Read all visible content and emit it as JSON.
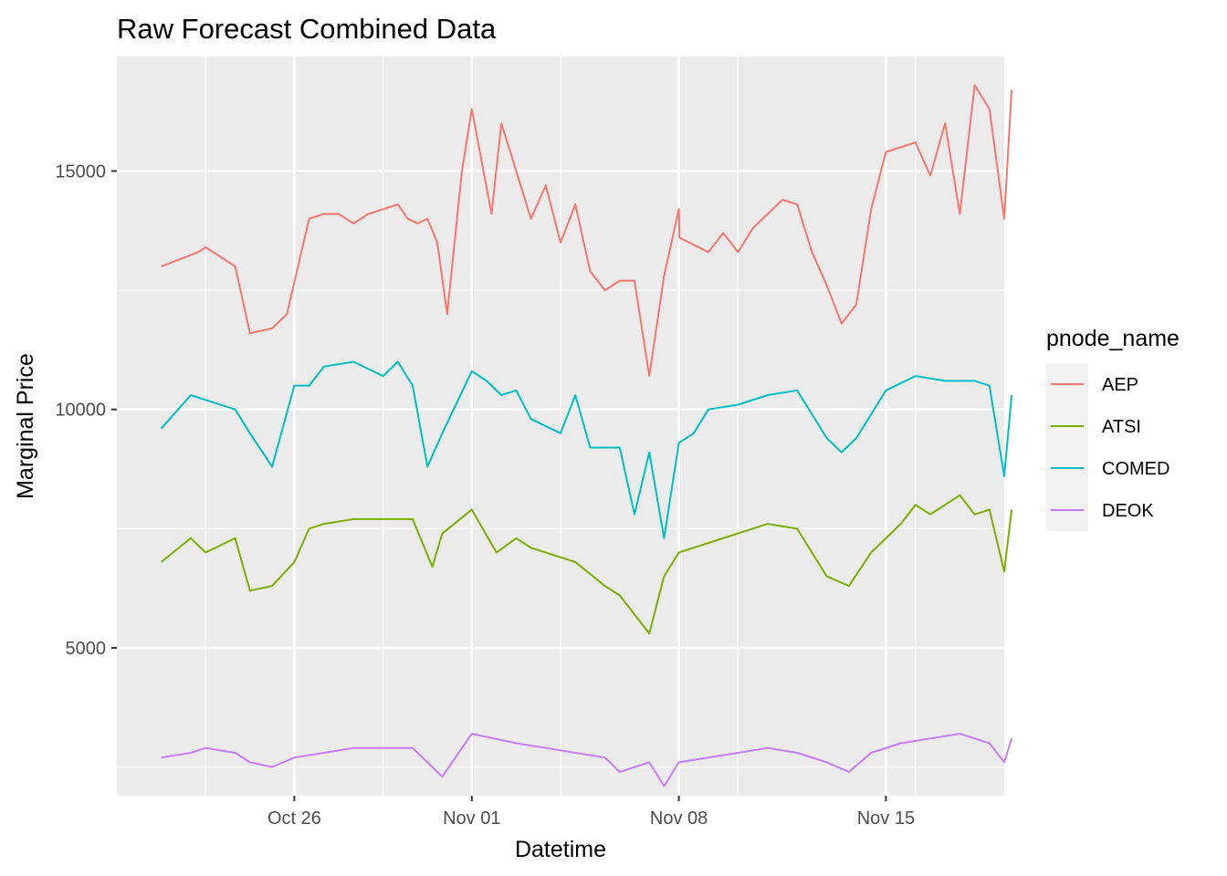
{
  "chart_data": {
    "type": "line",
    "title": "Raw Forecast Combined Data",
    "xlabel": "Datetime",
    "ylabel": "Marginal Price",
    "x_type": "date",
    "xlim": [
      "2025-10-20",
      "2025-11-19"
    ],
    "ylim": [
      1900,
      17400
    ],
    "x_ticks": [
      {
        "value": "2025-10-26",
        "label": "Oct 26"
      },
      {
        "value": "2025-11-01",
        "label": "Nov 01"
      },
      {
        "value": "2025-11-08",
        "label": "Nov 08"
      },
      {
        "value": "2025-11-15",
        "label": "Nov 15"
      }
    ],
    "y_ticks": [
      {
        "value": 5000,
        "label": "5000"
      },
      {
        "value": 10000,
        "label": "10000"
      },
      {
        "value": 15000,
        "label": "15000"
      }
    ],
    "grid": true,
    "legend": {
      "title": "pnode_name",
      "position": "right"
    },
    "series": [
      {
        "name": "AEP",
        "color": "#F8766D",
        "points": [
          [
            "2025-10-21 12:00",
            13000
          ],
          [
            "2025-10-22 18:00",
            13300
          ],
          [
            "2025-10-23 00:00",
            13400
          ],
          [
            "2025-10-24 00:00",
            13000
          ],
          [
            "2025-10-24 12:00",
            11600
          ],
          [
            "2025-10-25 06:00",
            11700
          ],
          [
            "2025-10-25 18:00",
            12000
          ],
          [
            "2025-10-26 12:00",
            14000
          ],
          [
            "2025-10-27 00:00",
            14100
          ],
          [
            "2025-10-27 12:00",
            14100
          ],
          [
            "2025-10-28 00:00",
            13900
          ],
          [
            "2025-10-28 12:00",
            14100
          ],
          [
            "2025-10-29 00:00",
            14200
          ],
          [
            "2025-10-29 12:00",
            14300
          ],
          [
            "2025-10-29 20:00",
            14000
          ],
          [
            "2025-10-30 04:00",
            13900
          ],
          [
            "2025-10-30 12:00",
            14000
          ],
          [
            "2025-10-30 20:00",
            13500
          ],
          [
            "2025-10-31 04:00",
            12000
          ],
          [
            "2025-10-31 16:00",
            15000
          ],
          [
            "2025-11-01 00:00",
            16300
          ],
          [
            "2025-11-01 16:00",
            14100
          ],
          [
            "2025-11-02 00:00",
            16000
          ],
          [
            "2025-11-02 12:00",
            15000
          ],
          [
            "2025-11-03 00:00",
            14000
          ],
          [
            "2025-11-03 12:00",
            14700
          ],
          [
            "2025-11-04 00:00",
            13500
          ],
          [
            "2025-11-04 12:00",
            14300
          ],
          [
            "2025-11-05 00:00",
            12900
          ],
          [
            "2025-11-05 12:00",
            12500
          ],
          [
            "2025-11-06 00:00",
            12700
          ],
          [
            "2025-11-06 12:00",
            12700
          ],
          [
            "2025-11-07 00:00",
            10700
          ],
          [
            "2025-11-07 12:00",
            12800
          ],
          [
            "2025-11-08 00:00",
            14200
          ],
          [
            "2025-11-08 00:30",
            13600
          ],
          [
            "2025-11-09 00:00",
            13300
          ],
          [
            "2025-11-09 12:00",
            13700
          ],
          [
            "2025-11-10 00:00",
            13300
          ],
          [
            "2025-11-10 12:00",
            13800
          ],
          [
            "2025-11-11 00:00",
            14100
          ],
          [
            "2025-11-11 12:00",
            14400
          ],
          [
            "2025-11-12 00:00",
            14300
          ],
          [
            "2025-11-12 12:00",
            13300
          ],
          [
            "2025-11-13 00:00",
            12600
          ],
          [
            "2025-11-13 12:00",
            11800
          ],
          [
            "2025-11-14 00:00",
            12200
          ],
          [
            "2025-11-14 12:00",
            14200
          ],
          [
            "2025-11-15 00:00",
            15400
          ],
          [
            "2025-11-15 12:00",
            15500
          ],
          [
            "2025-11-16 00:00",
            15600
          ],
          [
            "2025-11-16 12:00",
            14900
          ],
          [
            "2025-11-17 00:00",
            16000
          ],
          [
            "2025-11-17 12:00",
            14100
          ],
          [
            "2025-11-18 00:00",
            16800
          ],
          [
            "2025-11-18 12:00",
            16300
          ],
          [
            "2025-11-19 00:00",
            14000
          ],
          [
            "2025-11-19 06:00",
            16700
          ]
        ]
      },
      {
        "name": "ATSI",
        "color": "#7CAE00",
        "points": [
          [
            "2025-10-21 12:00",
            6800
          ],
          [
            "2025-10-22 12:00",
            7300
          ],
          [
            "2025-10-23 00:00",
            7000
          ],
          [
            "2025-10-24 00:00",
            7300
          ],
          [
            "2025-10-24 12:00",
            6200
          ],
          [
            "2025-10-25 06:00",
            6300
          ],
          [
            "2025-10-26 00:00",
            6800
          ],
          [
            "2025-10-26 12:00",
            7500
          ],
          [
            "2025-10-27 00:00",
            7600
          ],
          [
            "2025-10-28 00:00",
            7700
          ],
          [
            "2025-10-29 00:00",
            7700
          ],
          [
            "2025-10-30 00:00",
            7700
          ],
          [
            "2025-10-30 16:00",
            6700
          ],
          [
            "2025-10-31 00:00",
            7400
          ],
          [
            "2025-11-01 00:00",
            7900
          ],
          [
            "2025-11-01 20:00",
            7000
          ],
          [
            "2025-11-02 12:00",
            7300
          ],
          [
            "2025-11-03 00:00",
            7100
          ],
          [
            "2025-11-04 00:00",
            6900
          ],
          [
            "2025-11-04 12:00",
            6800
          ],
          [
            "2025-11-05 12:00",
            6300
          ],
          [
            "2025-11-06 00:00",
            6100
          ],
          [
            "2025-11-07 00:00",
            5300
          ],
          [
            "2025-11-07 12:00",
            6500
          ],
          [
            "2025-11-08 00:00",
            7000
          ],
          [
            "2025-11-09 00:00",
            7200
          ],
          [
            "2025-11-10 00:00",
            7400
          ],
          [
            "2025-11-11 00:00",
            7600
          ],
          [
            "2025-11-12 00:00",
            7500
          ],
          [
            "2025-11-13 00:00",
            6500
          ],
          [
            "2025-11-13 18:00",
            6300
          ],
          [
            "2025-11-14 12:00",
            7000
          ],
          [
            "2025-11-15 12:00",
            7600
          ],
          [
            "2025-11-16 00:00",
            8000
          ],
          [
            "2025-11-16 12:00",
            7800
          ],
          [
            "2025-11-17 12:00",
            8200
          ],
          [
            "2025-11-18 00:00",
            7800
          ],
          [
            "2025-11-18 12:00",
            7900
          ],
          [
            "2025-11-19 00:00",
            6600
          ],
          [
            "2025-11-19 06:00",
            7900
          ]
        ]
      },
      {
        "name": "COMED",
        "color": "#00BFC4",
        "points": [
          [
            "2025-10-21 12:00",
            9600
          ],
          [
            "2025-10-22 12:00",
            10300
          ],
          [
            "2025-10-23 00:00",
            10200
          ],
          [
            "2025-10-24 00:00",
            10000
          ],
          [
            "2025-10-24 12:00",
            9500
          ],
          [
            "2025-10-25 06:00",
            8800
          ],
          [
            "2025-10-26 00:00",
            10500
          ],
          [
            "2025-10-26 12:00",
            10500
          ],
          [
            "2025-10-27 00:00",
            10900
          ],
          [
            "2025-10-28 00:00",
            11000
          ],
          [
            "2025-10-29 00:00",
            10700
          ],
          [
            "2025-10-29 12:00",
            11000
          ],
          [
            "2025-10-30 00:00",
            10500
          ],
          [
            "2025-10-30 12:00",
            8800
          ],
          [
            "2025-10-31 00:00",
            9500
          ],
          [
            "2025-11-01 00:00",
            10800
          ],
          [
            "2025-11-01 12:00",
            10600
          ],
          [
            "2025-11-02 00:00",
            10300
          ],
          [
            "2025-11-02 12:00",
            10400
          ],
          [
            "2025-11-03 00:00",
            9800
          ],
          [
            "2025-11-04 00:00",
            9500
          ],
          [
            "2025-11-04 12:00",
            10300
          ],
          [
            "2025-11-05 00:00",
            9200
          ],
          [
            "2025-11-06 00:00",
            9200
          ],
          [
            "2025-11-06 12:00",
            7800
          ],
          [
            "2025-11-07 00:00",
            9100
          ],
          [
            "2025-11-07 12:00",
            7300
          ],
          [
            "2025-11-08 00:00",
            9300
          ],
          [
            "2025-11-08 12:00",
            9500
          ],
          [
            "2025-11-09 00:00",
            10000
          ],
          [
            "2025-11-10 00:00",
            10100
          ],
          [
            "2025-11-11 00:00",
            10300
          ],
          [
            "2025-11-12 00:00",
            10400
          ],
          [
            "2025-11-13 00:00",
            9400
          ],
          [
            "2025-11-13 12:00",
            9100
          ],
          [
            "2025-11-14 00:00",
            9400
          ],
          [
            "2025-11-15 00:00",
            10400
          ],
          [
            "2025-11-16 00:00",
            10700
          ],
          [
            "2025-11-17 00:00",
            10600
          ],
          [
            "2025-11-18 00:00",
            10600
          ],
          [
            "2025-11-18 12:00",
            10500
          ],
          [
            "2025-11-19 00:00",
            8600
          ],
          [
            "2025-11-19 06:00",
            10300
          ]
        ]
      },
      {
        "name": "DEOK",
        "color": "#C77CFF",
        "points": [
          [
            "2025-10-21 12:00",
            2700
          ],
          [
            "2025-10-22 12:00",
            2800
          ],
          [
            "2025-10-23 00:00",
            2900
          ],
          [
            "2025-10-24 00:00",
            2800
          ],
          [
            "2025-10-24 12:00",
            2600
          ],
          [
            "2025-10-25 06:00",
            2500
          ],
          [
            "2025-10-26 00:00",
            2700
          ],
          [
            "2025-10-27 00:00",
            2800
          ],
          [
            "2025-10-28 00:00",
            2900
          ],
          [
            "2025-10-29 00:00",
            2900
          ],
          [
            "2025-10-30 00:00",
            2900
          ],
          [
            "2025-10-31 00:00",
            2300
          ],
          [
            "2025-11-01 00:00",
            3200
          ],
          [
            "2025-11-01 18:00",
            3100
          ],
          [
            "2025-11-02 12:00",
            3000
          ],
          [
            "2025-11-03 12:00",
            2900
          ],
          [
            "2025-11-04 12:00",
            2800
          ],
          [
            "2025-11-05 12:00",
            2700
          ],
          [
            "2025-11-06 00:00",
            2400
          ],
          [
            "2025-11-07 00:00",
            2600
          ],
          [
            "2025-11-07 12:00",
            2100
          ],
          [
            "2025-11-08 00:00",
            2600
          ],
          [
            "2025-11-09 00:00",
            2700
          ],
          [
            "2025-11-10 00:00",
            2800
          ],
          [
            "2025-11-11 00:00",
            2900
          ],
          [
            "2025-11-12 00:00",
            2800
          ],
          [
            "2025-11-13 00:00",
            2600
          ],
          [
            "2025-11-13 18:00",
            2400
          ],
          [
            "2025-11-14 12:00",
            2800
          ],
          [
            "2025-11-15 12:00",
            3000
          ],
          [
            "2025-11-16 12:00",
            3100
          ],
          [
            "2025-11-17 12:00",
            3200
          ],
          [
            "2025-11-18 12:00",
            3000
          ],
          [
            "2025-11-19 00:00",
            2600
          ],
          [
            "2025-11-19 06:00",
            3100
          ]
        ]
      }
    ]
  }
}
